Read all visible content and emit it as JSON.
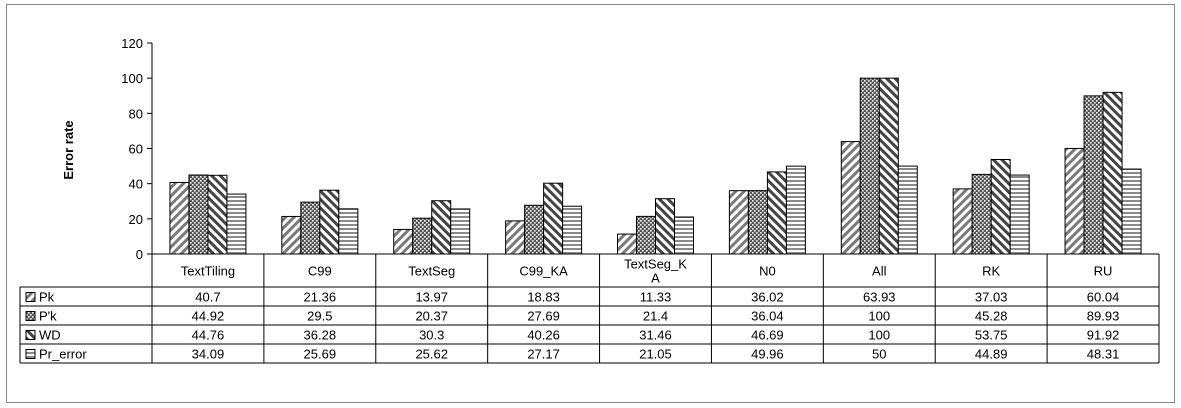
{
  "chart_data": {
    "type": "bar",
    "title": "",
    "ylabel": "Error rate",
    "xlabel": "",
    "ylim": [
      0,
      120
    ],
    "yticks": [
      0,
      20,
      40,
      60,
      80,
      100,
      120
    ],
    "grid": false,
    "legend": "in data table rows",
    "categories": [
      [
        "TextTiling"
      ],
      [
        "C99"
      ],
      [
        "TextSeg"
      ],
      [
        "C99_KA"
      ],
      [
        "TextSeg_K",
        "A"
      ],
      [
        "N0"
      ],
      [
        "All"
      ],
      [
        "RK"
      ],
      [
        "RU"
      ]
    ],
    "series": [
      {
        "name": "Pk",
        "pattern": "diag-right",
        "values": [
          40.7,
          21.36,
          13.97,
          18.83,
          11.33,
          36.02,
          63.93,
          37.03,
          60.04
        ]
      },
      {
        "name": "P'k",
        "pattern": "dots",
        "values": [
          44.92,
          29.5,
          20.37,
          27.69,
          21.4,
          36.04,
          100,
          45.28,
          89.93
        ]
      },
      {
        "name": "WD",
        "pattern": "diag-left",
        "values": [
          44.76,
          36.28,
          30.3,
          40.26,
          31.46,
          46.69,
          100,
          53.75,
          91.92
        ]
      },
      {
        "name": "Pr_error",
        "pattern": "horizontal",
        "values": [
          34.09,
          25.69,
          25.62,
          27.17,
          21.05,
          49.96,
          50,
          44.89,
          48.31
        ]
      }
    ]
  }
}
